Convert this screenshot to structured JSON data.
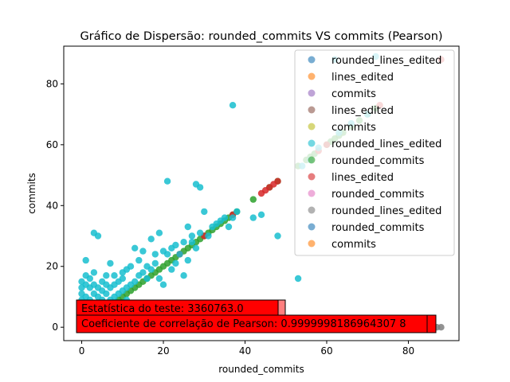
{
  "chart_data": {
    "type": "scatter",
    "title": "Gráfico de Dispersão: rounded_commits VS commits (Pearson)",
    "xlabel": "rounded_commits",
    "ylabel": "commits",
    "xlim": [
      -4.4,
      92.4
    ],
    "ylim": [
      -4.4,
      92.4
    ],
    "x_ticks": [
      0,
      20,
      40,
      60,
      80
    ],
    "y_ticks": [
      0,
      20,
      40,
      60,
      80
    ],
    "grid": false,
    "legend_position": "upper right",
    "legend": [
      {
        "label": "rounded_lines_edited",
        "color": "#1f77b4"
      },
      {
        "label": "lines_edited",
        "color": "#ff7f0e"
      },
      {
        "label": "commits",
        "color": "#9467bd"
      },
      {
        "label": "lines_edited",
        "color": "#8c564b"
      },
      {
        "label": "commits",
        "color": "#bcbd22"
      },
      {
        "label": "rounded_lines_edited",
        "color": "#17becf"
      },
      {
        "label": "rounded_commits",
        "color": "#2ca02c"
      },
      {
        "label": "lines_edited",
        "color": "#d62728"
      },
      {
        "label": "rounded_commits",
        "color": "#e377c2"
      },
      {
        "label": "rounded_lines_edited",
        "color": "#7f7f7f"
      },
      {
        "label": "rounded_commits",
        "color": "#1f77b4"
      },
      {
        "label": "commits",
        "color": "#ff7f0e"
      }
    ],
    "series": [
      {
        "color": "#2ca02c",
        "points": [
          [
            0,
            0
          ],
          [
            1,
            1
          ],
          [
            2,
            2
          ],
          [
            3,
            3
          ],
          [
            4,
            4
          ],
          [
            5,
            5
          ],
          [
            6,
            6
          ],
          [
            7,
            7
          ],
          [
            8,
            8
          ],
          [
            9,
            9
          ],
          [
            10,
            10
          ],
          [
            11,
            11
          ],
          [
            12,
            12
          ],
          [
            13,
            13
          ],
          [
            14,
            14
          ],
          [
            15,
            15
          ],
          [
            16,
            16
          ],
          [
            17,
            17
          ],
          [
            18,
            18
          ],
          [
            19,
            19
          ],
          [
            20,
            20
          ],
          [
            21,
            21
          ],
          [
            22,
            22
          ],
          [
            23,
            23
          ],
          [
            24,
            24
          ],
          [
            25,
            25
          ],
          [
            26,
            26
          ],
          [
            27,
            27
          ],
          [
            28,
            28
          ],
          [
            29,
            29
          ],
          [
            30,
            30
          ],
          [
            31,
            31
          ],
          [
            32,
            32
          ],
          [
            33,
            33
          ],
          [
            34,
            34
          ],
          [
            35,
            35
          ],
          [
            36,
            36
          ],
          [
            37,
            37
          ],
          [
            38,
            38
          ],
          [
            42,
            42
          ],
          [
            46,
            46
          ],
          [
            48,
            48
          ],
          [
            53,
            53
          ],
          [
            55,
            55
          ],
          [
            56,
            56
          ],
          [
            57,
            57
          ],
          [
            60,
            60
          ],
          [
            61,
            61
          ],
          [
            62,
            62
          ],
          [
            63,
            63
          ],
          [
            64,
            64
          ],
          [
            66,
            66
          ],
          [
            68,
            68
          ],
          [
            70,
            70
          ],
          [
            72,
            72
          ]
        ]
      },
      {
        "color": "#d62728",
        "points": [
          [
            24,
            24
          ],
          [
            30,
            30
          ],
          [
            37,
            37
          ],
          [
            44,
            44
          ],
          [
            45,
            45
          ],
          [
            46,
            46
          ],
          [
            47,
            47
          ],
          [
            48,
            48
          ],
          [
            58,
            58
          ],
          [
            60,
            60
          ],
          [
            73,
            73
          ],
          [
            88,
            88
          ]
        ]
      },
      {
        "color": "#7f7f7f",
        "points": [
          [
            84,
            0
          ],
          [
            85,
            0
          ],
          [
            86,
            0
          ],
          [
            87,
            0
          ],
          [
            88,
            0
          ],
          [
            1,
            0
          ],
          [
            3,
            0
          ],
          [
            6,
            0
          ],
          [
            10,
            0
          ],
          [
            30,
            0
          ],
          [
            40,
            0
          ],
          [
            50,
            0
          ]
        ]
      },
      {
        "color": "#17becf",
        "points": [
          [
            0,
            1
          ],
          [
            0,
            3
          ],
          [
            0,
            5
          ],
          [
            0,
            7
          ],
          [
            0,
            9
          ],
          [
            0,
            11
          ],
          [
            0,
            13
          ],
          [
            0,
            15
          ],
          [
            1,
            2
          ],
          [
            1,
            4
          ],
          [
            1,
            6
          ],
          [
            1,
            8
          ],
          [
            1,
            10
          ],
          [
            1,
            14
          ],
          [
            1,
            17
          ],
          [
            1,
            22
          ],
          [
            2,
            1
          ],
          [
            2,
            3
          ],
          [
            2,
            6
          ],
          [
            2,
            9
          ],
          [
            2,
            13
          ],
          [
            2,
            16
          ],
          [
            3,
            2
          ],
          [
            3,
            5
          ],
          [
            3,
            8
          ],
          [
            3,
            11
          ],
          [
            3,
            14
          ],
          [
            3,
            18
          ],
          [
            3,
            31
          ],
          [
            4,
            3
          ],
          [
            4,
            7
          ],
          [
            4,
            10
          ],
          [
            4,
            13
          ],
          [
            4,
            30
          ],
          [
            5,
            2
          ],
          [
            5,
            6
          ],
          [
            5,
            9
          ],
          [
            5,
            12
          ],
          [
            5,
            15
          ],
          [
            6,
            4
          ],
          [
            6,
            8
          ],
          [
            6,
            11
          ],
          [
            6,
            14
          ],
          [
            6,
            17
          ],
          [
            7,
            5
          ],
          [
            7,
            9
          ],
          [
            7,
            13
          ],
          [
            7,
            21
          ],
          [
            8,
            6
          ],
          [
            8,
            10
          ],
          [
            8,
            14
          ],
          [
            8,
            17
          ],
          [
            9,
            7
          ],
          [
            9,
            11
          ],
          [
            9,
            15
          ],
          [
            10,
            12
          ],
          [
            10,
            16
          ],
          [
            10,
            18
          ],
          [
            11,
            9
          ],
          [
            11,
            13
          ],
          [
            11,
            19
          ],
          [
            12,
            14
          ],
          [
            12,
            20
          ],
          [
            13,
            26
          ],
          [
            13,
            15
          ],
          [
            14,
            17
          ],
          [
            14,
            22
          ],
          [
            15,
            18
          ],
          [
            15,
            25
          ],
          [
            16,
            16
          ],
          [
            16,
            20
          ],
          [
            17,
            19
          ],
          [
            17,
            29
          ],
          [
            18,
            21
          ],
          [
            18,
            24
          ],
          [
            19,
            16
          ],
          [
            19,
            31
          ],
          [
            20,
            14
          ],
          [
            20,
            25
          ],
          [
            21,
            24
          ],
          [
            21,
            48
          ],
          [
            22,
            19
          ],
          [
            22,
            26
          ],
          [
            23,
            21
          ],
          [
            23,
            27
          ],
          [
            24,
            24
          ],
          [
            25,
            17
          ],
          [
            25,
            28
          ],
          [
            26,
            22
          ],
          [
            26,
            33
          ],
          [
            27,
            28
          ],
          [
            27,
            30
          ],
          [
            28,
            47
          ],
          [
            28,
            26
          ],
          [
            29,
            46
          ],
          [
            29,
            31
          ],
          [
            30,
            38
          ],
          [
            31,
            30
          ],
          [
            32,
            33
          ],
          [
            33,
            34
          ],
          [
            34,
            35
          ],
          [
            35,
            36
          ],
          [
            36,
            33
          ],
          [
            37,
            73
          ],
          [
            37,
            36
          ],
          [
            38,
            38
          ],
          [
            42,
            36
          ],
          [
            44,
            37
          ],
          [
            48,
            30
          ],
          [
            53,
            16
          ],
          [
            54,
            53
          ],
          [
            56,
            55
          ],
          [
            58,
            59
          ],
          [
            62,
            88
          ],
          [
            63,
            64
          ],
          [
            66,
            67
          ],
          [
            70,
            70
          ],
          [
            72,
            89
          ],
          [
            2,
            0
          ],
          [
            5,
            0
          ],
          [
            8,
            0
          ],
          [
            12,
            0
          ],
          [
            15,
            0
          ],
          [
            20,
            0
          ],
          [
            25,
            0
          ]
        ]
      }
    ],
    "annotations": [
      {
        "text": "Estatística do teste: 3360763.0",
        "x": 0,
        "y": 6
      },
      {
        "text": "Coeficiente de correlação de Pearson: 0.9999998186964307 8",
        "x": 0,
        "y": 1
      }
    ]
  }
}
